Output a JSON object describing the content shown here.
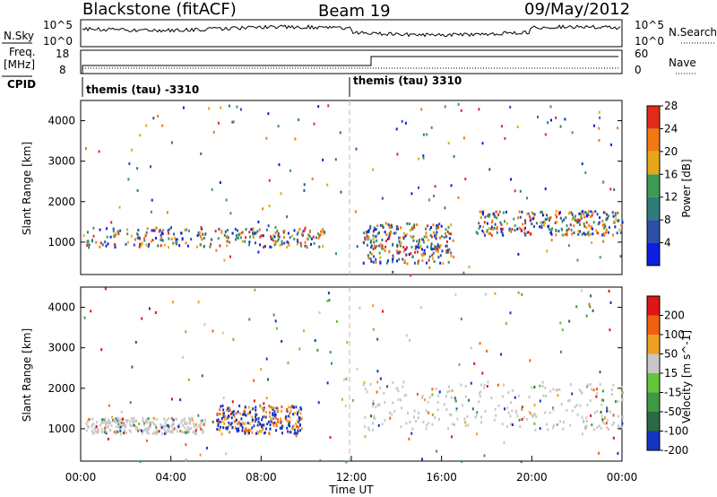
{
  "header": {
    "station": "Blackstone (fitACF)",
    "beam": "Beam 19",
    "date": "09/May/2012"
  },
  "top_panels": {
    "nsky_label": "N.Sky",
    "nsky_ticks": [
      "10^5",
      "10^0"
    ],
    "nsearch_label": "N.Search",
    "nsearch_ticks": [
      "10^5",
      "10^0"
    ],
    "freq_label": "Freq.",
    "freq_unit": "[MHz]",
    "freq_ticks": [
      "18",
      "8"
    ],
    "nave_label": "Nave",
    "nave_ticks": [
      "60",
      "0"
    ],
    "cpid_label": "CPID",
    "cpid_segments": [
      "themis (tau) -3310",
      "themis (tau) 3310"
    ]
  },
  "chart_data": [
    {
      "type": "heatmap",
      "title": "",
      "ylabel": "Slant Range [km]",
      "xlabel": "",
      "yticks": [
        "1000",
        "2000",
        "3000",
        "4000"
      ],
      "ylim": [
        200,
        4500
      ],
      "xlim": [
        0,
        24
      ],
      "colorbar": {
        "label": "Power [dB]",
        "ticks": [
          "4",
          "8",
          "12",
          "16",
          "20",
          "24",
          "28"
        ],
        "colors": [
          "#0a1fe0",
          "#2c4fa8",
          "#2f7a7a",
          "#3c9a55",
          "#e6a81a",
          "#f07a12",
          "#e42a1a"
        ]
      },
      "description_of_echo_bands": [
        {
          "x_start": 0.2,
          "x_end": 10.8,
          "range_min": 900,
          "range_max": 1400,
          "power_db": 18
        },
        {
          "x_start": 12.5,
          "x_end": 16.5,
          "range_min": 500,
          "range_max": 1500,
          "power_db": 16
        },
        {
          "x_start": 17.5,
          "x_end": 24.0,
          "range_min": 1200,
          "range_max": 1800,
          "power_db": 20
        }
      ]
    },
    {
      "type": "heatmap",
      "title": "",
      "ylabel": "Slant Range [km]",
      "xlabel": "Time UT",
      "xticks": [
        "00:00",
        "04:00",
        "08:00",
        "12:00",
        "16:00",
        "20:00",
        "00:00"
      ],
      "yticks": [
        "1000",
        "2000",
        "3000",
        "4000"
      ],
      "ylim": [
        200,
        4500
      ],
      "xlim": [
        0,
        24
      ],
      "colorbar": {
        "label": "Velocity [m s^-1]",
        "ticks": [
          "200",
          "100",
          "50",
          "15",
          "-15",
          "-50",
          "-100",
          "-200"
        ],
        "colors": [
          "#1535c0",
          "#2a6a44",
          "#3c9a45",
          "#66c43c",
          "#c8c8c8",
          "#f0a020",
          "#f06010",
          "#e01515"
        ]
      },
      "description_of_echo_bands": [
        {
          "x_start": 0.2,
          "x_end": 5.5,
          "range_min": 900,
          "range_max": 1300,
          "velocity": 0
        },
        {
          "x_start": 6.0,
          "x_end": 9.8,
          "range_min": 900,
          "range_max": 1600,
          "velocity": -60
        },
        {
          "x_start": 12.5,
          "x_end": 24.0,
          "range_min": 1000,
          "range_max": 2200,
          "velocity": 0
        }
      ]
    }
  ]
}
